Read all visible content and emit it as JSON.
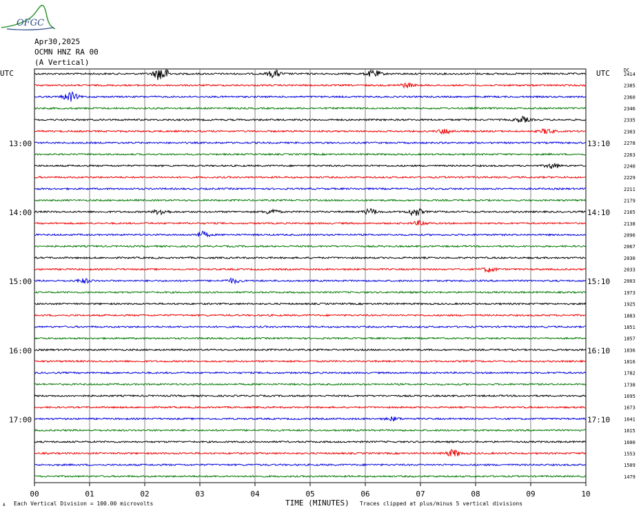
{
  "logo": {
    "text": "OFGC",
    "colors": [
      "#3a9a3a",
      "#2a4a8a"
    ]
  },
  "header": {
    "date": "Apr30,2025",
    "station": "OCMN HNZ RA 00",
    "component": "(A Vertical)"
  },
  "left_axis_label": "UTC",
  "right_axis_label": "UTC",
  "dc_label": "DC",
  "footer": {
    "corner": "A",
    "scale": "Each Vertical Division =  100.00 microvolts",
    "xlabel": "TIME (MINUTES)",
    "clip": "Traces clipped at plus/minus 5 vertical divisions"
  },
  "chart_data": {
    "type": "line",
    "title": "",
    "xlabel": "TIME (MINUTES)",
    "ylabel": "",
    "xlim": [
      0,
      10
    ],
    "x_ticks": [
      "00",
      "01",
      "02",
      "03",
      "04",
      "05",
      "06",
      "07",
      "08",
      "09",
      "10"
    ],
    "grid": true,
    "trace_count": 36,
    "trace_colors": [
      "#000000",
      "#ee0000",
      "#0000dd",
      "#007700"
    ],
    "left_time_labels": [
      {
        "trace": 6,
        "label": "13:00"
      },
      {
        "trace": 12,
        "label": "14:00"
      },
      {
        "trace": 18,
        "label": "15:00"
      },
      {
        "trace": 24,
        "label": "16:00"
      },
      {
        "trace": 30,
        "label": "17:00"
      }
    ],
    "right_time_labels": [
      {
        "trace": 6,
        "label": "13:10"
      },
      {
        "trace": 12,
        "label": "14:10"
      },
      {
        "trace": 18,
        "label": "15:10"
      },
      {
        "trace": 24,
        "label": "16:10"
      },
      {
        "trace": 30,
        "label": "17:10"
      }
    ],
    "dc_offsets": [
      2414,
      2385,
      2360,
      2346,
      2335,
      2303,
      2278,
      2263,
      2240,
      2229,
      2211,
      2179,
      2165,
      2138,
      2096,
      2067,
      2030,
      2033,
      2003,
      1973,
      1925,
      1883,
      1851,
      1857,
      1836,
      1816,
      1782,
      1738,
      1695,
      1673,
      1641,
      1615,
      1600,
      1553,
      1509,
      1479
    ],
    "events": [
      {
        "trace": 0,
        "minute": 2.3,
        "amp": 2.2
      },
      {
        "trace": 0,
        "minute": 4.35,
        "amp": 1.0
      },
      {
        "trace": 0,
        "minute": 6.15,
        "amp": 1.0
      },
      {
        "trace": 2,
        "minute": 0.65,
        "amp": 1.3
      },
      {
        "trace": 1,
        "minute": 6.75,
        "amp": 0.6
      },
      {
        "trace": 4,
        "minute": 8.85,
        "amp": 0.8
      },
      {
        "trace": 5,
        "minute": 7.45,
        "amp": 0.7
      },
      {
        "trace": 5,
        "minute": 9.3,
        "amp": 0.7
      },
      {
        "trace": 8,
        "minute": 9.4,
        "amp": 0.7
      },
      {
        "trace": 12,
        "minute": 2.3,
        "amp": 0.8
      },
      {
        "trace": 12,
        "minute": 4.3,
        "amp": 0.7
      },
      {
        "trace": 12,
        "minute": 6.1,
        "amp": 0.8
      },
      {
        "trace": 12,
        "minute": 6.9,
        "amp": 1.1
      },
      {
        "trace": 13,
        "minute": 7.0,
        "amp": 0.6
      },
      {
        "trace": 14,
        "minute": 3.05,
        "amp": 0.8
      },
      {
        "trace": 17,
        "minute": 8.25,
        "amp": 0.7
      },
      {
        "trace": 18,
        "minute": 0.9,
        "amp": 0.6
      },
      {
        "trace": 18,
        "minute": 3.6,
        "amp": 0.6
      },
      {
        "trace": 30,
        "minute": 6.5,
        "amp": 0.5
      },
      {
        "trace": 33,
        "minute": 7.6,
        "amp": 1.0
      }
    ]
  }
}
